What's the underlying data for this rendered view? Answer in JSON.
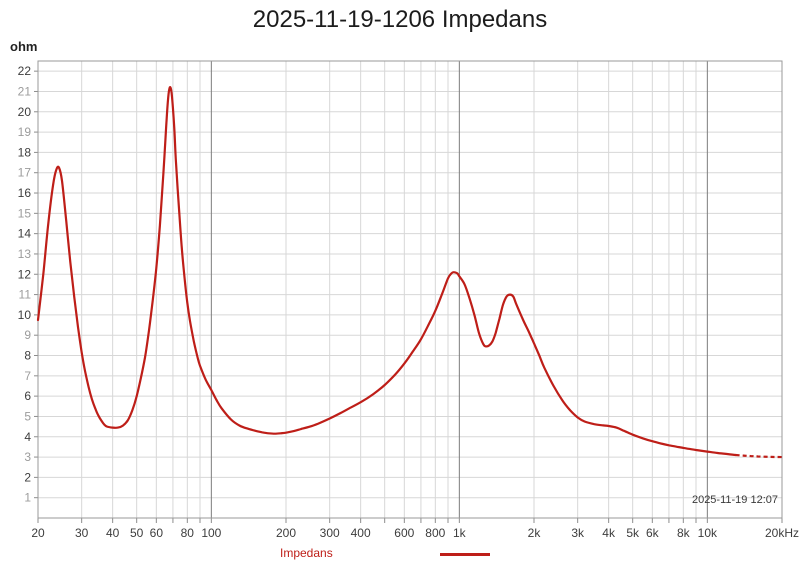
{
  "title": "2025-11-19-1206 Impedans",
  "y_axis_unit": "ohm",
  "timestamp": "2025-11-19 12:07",
  "legend": {
    "series_label": "Impedans"
  },
  "colors": {
    "curve": "#be1e18",
    "grid_minor": "#d7d7d7",
    "grid_major": "#7d7d7d",
    "plot_border": "#9a9a9a",
    "tick_mark": "#8c8c8c",
    "tick_label_dark": "#3d3d3d",
    "tick_label_gray": "#9c9c9c",
    "title_text": "#1c1c1c"
  },
  "chart_data": {
    "type": "line",
    "title": "2025-11-19-1206 Impedans",
    "ylabel": "ohm",
    "xlabel": "Hz",
    "x_scale": "log",
    "x_min": 20,
    "x_max": 20000,
    "y_min": 0,
    "y_max": 22.5,
    "grid": true,
    "legend_position": "bottom",
    "y_ticks": [
      1,
      2,
      3,
      4,
      5,
      6,
      7,
      8,
      9,
      10,
      11,
      12,
      13,
      14,
      15,
      16,
      17,
      18,
      19,
      20,
      21,
      22
    ],
    "x_ticks": [
      {
        "f": 20,
        "label": "20"
      },
      {
        "f": 30,
        "label": "30"
      },
      {
        "f": 40,
        "label": "40"
      },
      {
        "f": 50,
        "label": "50"
      },
      {
        "f": 60,
        "label": "60"
      },
      {
        "f": 70,
        "label": ""
      },
      {
        "f": 80,
        "label": "80"
      },
      {
        "f": 90,
        "label": ""
      },
      {
        "f": 100,
        "label": "100"
      },
      {
        "f": 200,
        "label": "200"
      },
      {
        "f": 300,
        "label": "300"
      },
      {
        "f": 400,
        "label": "400"
      },
      {
        "f": 500,
        "label": ""
      },
      {
        "f": 600,
        "label": "600"
      },
      {
        "f": 700,
        "label": ""
      },
      {
        "f": 800,
        "label": "800"
      },
      {
        "f": 900,
        "label": ""
      },
      {
        "f": 1000,
        "label": "1k"
      },
      {
        "f": 2000,
        "label": "2k"
      },
      {
        "f": 3000,
        "label": "3k"
      },
      {
        "f": 4000,
        "label": "4k"
      },
      {
        "f": 5000,
        "label": "5k"
      },
      {
        "f": 6000,
        "label": "6k"
      },
      {
        "f": 7000,
        "label": ""
      },
      {
        "f": 8000,
        "label": "8k"
      },
      {
        "f": 9000,
        "label": ""
      },
      {
        "f": 10000,
        "label": "10k"
      },
      {
        "f": 20000,
        "label": "20kHz"
      }
    ],
    "x_major_gridlines": [
      100,
      1000,
      10000
    ],
    "dashed_tail_from_hz": 13000,
    "series": [
      {
        "name": "Impedans",
        "color": "#be1e18",
        "points": [
          [
            20,
            9.75
          ],
          [
            21,
            12.0
          ],
          [
            22,
            14.5
          ],
          [
            23,
            16.4
          ],
          [
            23.7,
            17.15
          ],
          [
            24.3,
            17.25
          ],
          [
            25,
            16.6
          ],
          [
            26,
            14.6
          ],
          [
            27,
            12.6
          ],
          [
            28,
            10.9
          ],
          [
            29,
            9.4
          ],
          [
            30,
            8.15
          ],
          [
            31,
            7.2
          ],
          [
            32,
            6.45
          ],
          [
            33,
            5.85
          ],
          [
            34,
            5.4
          ],
          [
            35,
            5.05
          ],
          [
            36,
            4.8
          ],
          [
            37,
            4.6
          ],
          [
            38,
            4.5
          ],
          [
            40,
            4.45
          ],
          [
            42,
            4.45
          ],
          [
            44,
            4.55
          ],
          [
            46,
            4.8
          ],
          [
            48,
            5.3
          ],
          [
            50,
            6.0
          ],
          [
            52,
            6.9
          ],
          [
            54,
            7.9
          ],
          [
            56,
            9.2
          ],
          [
            58,
            10.7
          ],
          [
            60,
            12.3
          ],
          [
            62,
            14.4
          ],
          [
            64,
            16.9
          ],
          [
            65,
            18.2
          ],
          [
            66,
            19.6
          ],
          [
            67,
            20.7
          ],
          [
            68,
            21.2
          ],
          [
            69,
            21.0
          ],
          [
            70,
            20.2
          ],
          [
            71,
            19.0
          ],
          [
            72,
            17.5
          ],
          [
            74,
            15.3
          ],
          [
            76,
            13.3
          ],
          [
            78,
            11.8
          ],
          [
            80,
            10.6
          ],
          [
            82,
            9.7
          ],
          [
            85,
            8.7
          ],
          [
            88,
            7.9
          ],
          [
            90,
            7.5
          ],
          [
            95,
            6.8
          ],
          [
            100,
            6.3
          ],
          [
            105,
            5.8
          ],
          [
            110,
            5.4
          ],
          [
            120,
            4.85
          ],
          [
            130,
            4.55
          ],
          [
            140,
            4.4
          ],
          [
            150,
            4.3
          ],
          [
            160,
            4.22
          ],
          [
            170,
            4.17
          ],
          [
            180,
            4.15
          ],
          [
            190,
            4.17
          ],
          [
            200,
            4.2
          ],
          [
            215,
            4.28
          ],
          [
            230,
            4.38
          ],
          [
            250,
            4.5
          ],
          [
            270,
            4.65
          ],
          [
            300,
            4.9
          ],
          [
            330,
            5.15
          ],
          [
            360,
            5.4
          ],
          [
            400,
            5.7
          ],
          [
            450,
            6.1
          ],
          [
            500,
            6.55
          ],
          [
            550,
            7.05
          ],
          [
            600,
            7.6
          ],
          [
            650,
            8.2
          ],
          [
            700,
            8.8
          ],
          [
            750,
            9.5
          ],
          [
            800,
            10.2
          ],
          [
            850,
            11.0
          ],
          [
            900,
            11.8
          ],
          [
            930,
            12.05
          ],
          [
            950,
            12.1
          ],
          [
            980,
            12.05
          ],
          [
            1000,
            11.9
          ],
          [
            1050,
            11.5
          ],
          [
            1100,
            10.8
          ],
          [
            1150,
            10.0
          ],
          [
            1200,
            9.1
          ],
          [
            1250,
            8.55
          ],
          [
            1280,
            8.45
          ],
          [
            1320,
            8.5
          ],
          [
            1360,
            8.7
          ],
          [
            1400,
            9.1
          ],
          [
            1450,
            9.8
          ],
          [
            1500,
            10.5
          ],
          [
            1550,
            10.9
          ],
          [
            1600,
            11.0
          ],
          [
            1650,
            10.9
          ],
          [
            1700,
            10.5
          ],
          [
            1800,
            9.8
          ],
          [
            1900,
            9.2
          ],
          [
            2000,
            8.6
          ],
          [
            2100,
            8.0
          ],
          [
            2200,
            7.4
          ],
          [
            2400,
            6.5
          ],
          [
            2600,
            5.8
          ],
          [
            2800,
            5.3
          ],
          [
            3000,
            4.95
          ],
          [
            3200,
            4.75
          ],
          [
            3500,
            4.62
          ],
          [
            3800,
            4.56
          ],
          [
            4000,
            4.53
          ],
          [
            4300,
            4.45
          ],
          [
            4600,
            4.3
          ],
          [
            5000,
            4.1
          ],
          [
            5500,
            3.92
          ],
          [
            6000,
            3.78
          ],
          [
            6500,
            3.67
          ],
          [
            7000,
            3.58
          ],
          [
            7500,
            3.51
          ],
          [
            8000,
            3.45
          ],
          [
            9000,
            3.35
          ],
          [
            10000,
            3.27
          ],
          [
            11000,
            3.2
          ],
          [
            12000,
            3.15
          ],
          [
            13000,
            3.1
          ],
          [
            14000,
            3.07
          ],
          [
            15000,
            3.05
          ],
          [
            16000,
            3.03
          ],
          [
            18000,
            3.01
          ],
          [
            20000,
            3.0
          ]
        ]
      }
    ]
  }
}
